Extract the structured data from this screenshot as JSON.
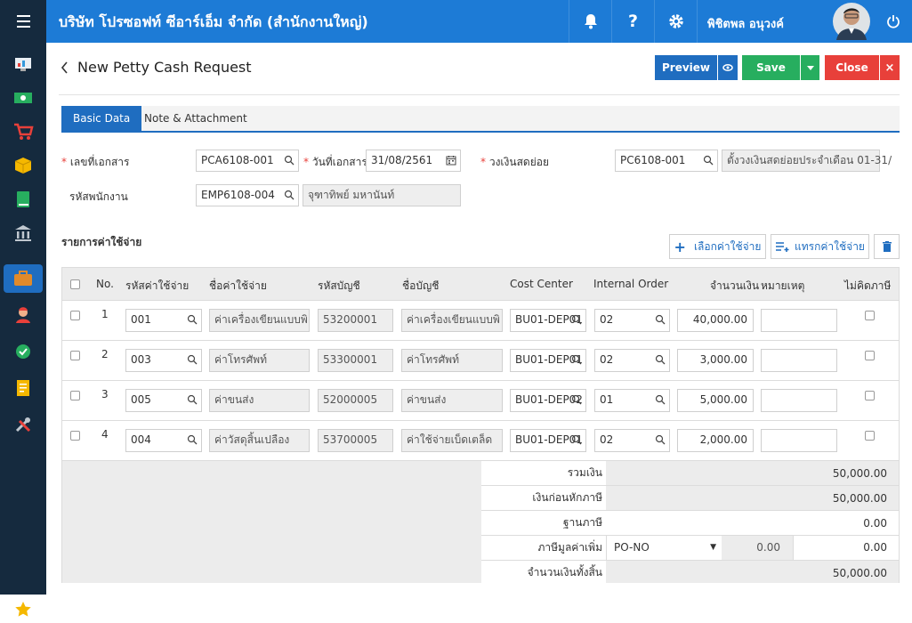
{
  "header": {
    "company": "บริษัท โปรซอฟท์ ซีอาร์เอ็ม จำกัด (สำนักงานใหญ่)",
    "user": "พิชิตพล อนุวงค์"
  },
  "page": {
    "title": "New Petty Cash Request",
    "preview": "Preview",
    "save": "Save",
    "close": "Close"
  },
  "tabs": [
    "Basic Data",
    "Note & Attachment"
  ],
  "form": {
    "doc_no_label": "เลขที่เอกสาร",
    "doc_no": "PCA6108-001",
    "doc_date_label": "วันที่เอกสาร",
    "doc_date": "31/08/2561",
    "fund_label": "วงเงินสดย่อย",
    "fund_code": "PC6108-001",
    "fund_name": "ตั้งวงเงินสดย่อยประจำเดือน 01-31/",
    "emp_label": "รหัสพนักงาน",
    "emp_code": "EMP6108-004",
    "emp_name": "จุฑาทิพย์ มหานันท์"
  },
  "expenses": {
    "title": "รายการค่าใช้จ่าย",
    "select_btn": "เลือกค่าใช้จ่าย",
    "insert_btn": "แทรกค่าใช้จ่าย",
    "columns": [
      "No.",
      "รหัสค่าใช้จ่าย",
      "ชื่อค่าใช้จ่าย",
      "รหัสบัญชี",
      "ชื่อบัญชี",
      "Cost Center",
      "Internal Order",
      "จำนวนเงิน",
      "หมายเหตุ",
      "ไม่คิดภาษี"
    ],
    "rows": [
      {
        "no": "1",
        "code": "001",
        "name": "ค่าเครื่องเขียนแบบพิ",
        "acc": "53200001",
        "acc_name": "ค่าเครื่องเขียนแบบพิ",
        "cc": "BU01-DEP01",
        "io": "02",
        "amount": "40,000.00",
        "note": ""
      },
      {
        "no": "2",
        "code": "003",
        "name": "ค่าโทรศัพท์",
        "acc": "53300001",
        "acc_name": "ค่าโทรศัพท์",
        "cc": "BU01-DEP01",
        "io": "02",
        "amount": "3,000.00",
        "note": ""
      },
      {
        "no": "3",
        "code": "005",
        "name": "ค่าขนส่ง",
        "acc": "52000005",
        "acc_name": "ค่าขนส่ง",
        "cc": "BU01-DEP02",
        "io": "01",
        "amount": "5,000.00",
        "note": ""
      },
      {
        "no": "4",
        "code": "004",
        "name": "ค่าวัสดุสิ้นเปลือง",
        "acc": "53700005",
        "acc_name": "ค่าใช้จ่ายเบ็ดเตล็ด",
        "cc": "BU01-DEP01",
        "io": "02",
        "amount": "2,000.00",
        "note": ""
      }
    ]
  },
  "summary": {
    "total_label": "รวมเงิน",
    "total": "50,000.00",
    "before_label": "เงินก่อนหักภาษี",
    "before": "50,000.00",
    "base_label": "ฐานภาษี",
    "base": "0.00",
    "vat_label": "ภาษีมูลค่าเพิ่ม",
    "vat_type": "PO-NO",
    "vat_rate": "0.00",
    "vat": "0.00",
    "grand_label": "จำนวนเงินทั้งสิ้น",
    "grand": "50,000.00"
  },
  "colors": {
    "topbar": "#1d7bd6",
    "sidebar": "#152a3e",
    "primary": "#1f6dc0",
    "save": "#27ae5f",
    "close": "#e8403a"
  }
}
